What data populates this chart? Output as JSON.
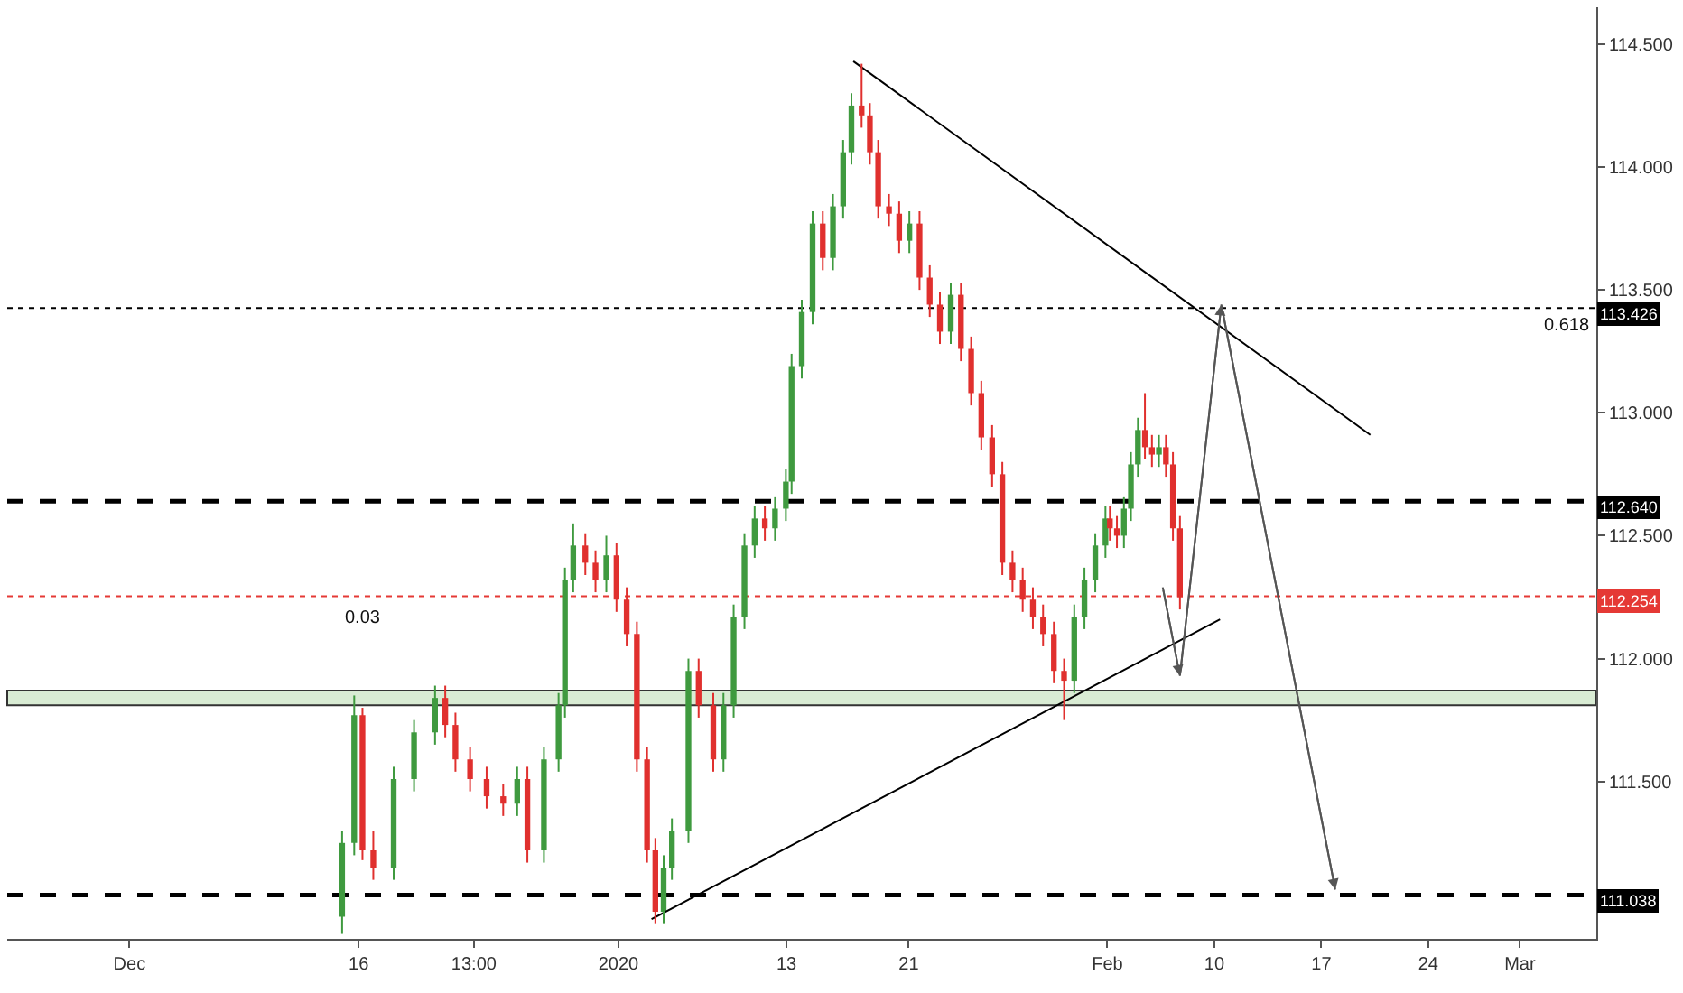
{
  "chart_data": {
    "type": "candlestick",
    "x": [
      "2019-12-14T22:00",
      "2019-12-15T17:00",
      "2019-12-16T06:00",
      "2019-12-16T23:00",
      "2019-12-18T07:00",
      "2019-12-19T15:00",
      "2019-12-21T00:00",
      "2019-12-21T16:00",
      "2019-12-22T08:00",
      "2019-12-23T07:00",
      "2019-12-24T09:00",
      "2019-12-25T11:00",
      "2019-12-26T09:00",
      "2019-12-27T01:00",
      "2019-12-28T03:00",
      "2019-12-29T02:00",
      "2019-12-29T12:00",
      "2019-12-30T01:00",
      "2019-12-30T20:00",
      "2019-12-31T12:00",
      "2020-01-01T05:00",
      "2020-01-01T21:00",
      "2020-01-02T13:00",
      "2020-01-03T05:00",
      "2020-01-03T21:00",
      "2020-01-04T10:00",
      "2020-01-04T23:00",
      "2020-01-05T12:00",
      "2020-01-06T14:00",
      "2020-01-07T06:00",
      "2020-01-08T05:00",
      "2020-01-08T21:00",
      "2020-01-09T13:00",
      "2020-01-10T06:00",
      "2020-01-10T22:00",
      "2020-01-11T14:00",
      "2020-01-12T06:00",
      "2020-01-12T23:00",
      "2020-01-13T08:00",
      "2020-01-14T00:00",
      "2020-01-14T17:00",
      "2020-01-15T09:00",
      "2020-01-16T01:00",
      "2020-01-16T17:00",
      "2020-01-17T06:00",
      "2020-01-17T22:00",
      "2020-01-18T11:00",
      "2020-01-19T00:00",
      "2020-01-19T17:00",
      "2020-01-20T09:00",
      "2020-01-21T01:00",
      "2020-01-21T17:00",
      "2020-01-22T09:00",
      "2020-01-23T01:00",
      "2020-01-23T18:00",
      "2020-01-24T10:00",
      "2020-01-25T02:00",
      "2020-01-25T18:00",
      "2020-01-26T11:00",
      "2020-01-27T03:00",
      "2020-01-27T19:00",
      "2020-01-28T11:00",
      "2020-01-29T03:00",
      "2020-01-29T19:00",
      "2020-01-30T12:00",
      "2020-01-31T04:00",
      "2020-01-31T20:00",
      "2020-02-01T12:00",
      "2020-02-02T05:00",
      "2020-02-02T21:00",
      "2020-02-03T04:00",
      "2020-02-03T15:00",
      "2020-02-04T02:00",
      "2020-02-04T13:00",
      "2020-02-05T00:00",
      "2020-02-05T11:00",
      "2020-02-05T22:00",
      "2020-02-06T09:00",
      "2020-02-06T20:00",
      "2020-02-07T07:00",
      "2020-02-07T18:00"
    ],
    "ohlc": [
      [
        110.95,
        111.3,
        110.88,
        111.25
      ],
      [
        111.25,
        111.85,
        111.2,
        111.77
      ],
      [
        111.77,
        111.8,
        111.18,
        111.22
      ],
      [
        111.22,
        111.3,
        111.1,
        111.15
      ],
      [
        111.15,
        111.56,
        111.1,
        111.51
      ],
      [
        111.51,
        111.75,
        111.46,
        111.7
      ],
      [
        111.7,
        111.89,
        111.65,
        111.84
      ],
      [
        111.84,
        111.89,
        111.68,
        111.73
      ],
      [
        111.73,
        111.78,
        111.54,
        111.59
      ],
      [
        111.59,
        111.64,
        111.46,
        111.51
      ],
      [
        111.51,
        111.56,
        111.39,
        111.44
      ],
      [
        111.44,
        111.49,
        111.36,
        111.41
      ],
      [
        111.41,
        111.56,
        111.36,
        111.51
      ],
      [
        111.51,
        111.56,
        111.17,
        111.22
      ],
      [
        111.22,
        111.64,
        111.17,
        111.59
      ],
      [
        111.59,
        111.86,
        111.54,
        111.81
      ],
      [
        111.81,
        112.37,
        111.76,
        112.32
      ],
      [
        112.32,
        112.55,
        112.27,
        112.46
      ],
      [
        112.46,
        112.51,
        112.34,
        112.39
      ],
      [
        112.39,
        112.44,
        112.27,
        112.32
      ],
      [
        112.32,
        112.5,
        112.27,
        112.42
      ],
      [
        112.42,
        112.47,
        112.19,
        112.24
      ],
      [
        112.24,
        112.29,
        112.05,
        112.1
      ],
      [
        112.1,
        112.15,
        111.54,
        111.59
      ],
      [
        111.59,
        111.64,
        111.17,
        111.22
      ],
      [
        111.22,
        111.27,
        110.92,
        110.97
      ],
      [
        110.97,
        111.2,
        110.92,
        111.15
      ],
      [
        111.15,
        111.35,
        111.1,
        111.3
      ],
      [
        111.3,
        112.0,
        111.25,
        111.95
      ],
      [
        111.95,
        112.0,
        111.76,
        111.81
      ],
      [
        111.81,
        111.86,
        111.54,
        111.59
      ],
      [
        111.59,
        111.86,
        111.54,
        111.81
      ],
      [
        111.81,
        112.22,
        111.76,
        112.17
      ],
      [
        112.17,
        112.51,
        112.12,
        112.46
      ],
      [
        112.46,
        112.62,
        112.41,
        112.57
      ],
      [
        112.57,
        112.62,
        112.48,
        112.53
      ],
      [
        112.53,
        112.66,
        112.48,
        112.61
      ],
      [
        112.61,
        112.77,
        112.56,
        112.72
      ],
      [
        112.72,
        113.24,
        112.67,
        113.19
      ],
      [
        113.19,
        113.46,
        113.14,
        113.41
      ],
      [
        113.41,
        113.82,
        113.36,
        113.77
      ],
      [
        113.77,
        113.82,
        113.58,
        113.63
      ],
      [
        113.63,
        113.89,
        113.58,
        113.84
      ],
      [
        113.84,
        114.11,
        113.79,
        114.06
      ],
      [
        114.06,
        114.3,
        114.01,
        114.25
      ],
      [
        114.25,
        114.42,
        114.16,
        114.21
      ],
      [
        114.21,
        114.26,
        114.01,
        114.06
      ],
      [
        114.06,
        114.11,
        113.79,
        113.84
      ],
      [
        113.84,
        113.89,
        113.76,
        113.81
      ],
      [
        113.81,
        113.86,
        113.65,
        113.7
      ],
      [
        113.7,
        113.82,
        113.65,
        113.77
      ],
      [
        113.77,
        113.82,
        113.5,
        113.55
      ],
      [
        113.55,
        113.6,
        113.39,
        113.44
      ],
      [
        113.44,
        113.49,
        113.28,
        113.33
      ],
      [
        113.33,
        113.53,
        113.28,
        113.48
      ],
      [
        113.48,
        113.53,
        113.21,
        113.26
      ],
      [
        113.26,
        113.31,
        113.03,
        113.08
      ],
      [
        113.08,
        113.13,
        112.85,
        112.9
      ],
      [
        112.9,
        112.95,
        112.7,
        112.75
      ],
      [
        112.75,
        112.8,
        112.34,
        112.39
      ],
      [
        112.39,
        112.44,
        112.27,
        112.32
      ],
      [
        112.32,
        112.37,
        112.19,
        112.24
      ],
      [
        112.24,
        112.29,
        112.12,
        112.17
      ],
      [
        112.17,
        112.22,
        112.05,
        112.1
      ],
      [
        112.1,
        112.15,
        111.9,
        111.95
      ],
      [
        111.95,
        112.0,
        111.75,
        111.91
      ],
      [
        111.91,
        112.22,
        111.86,
        112.17
      ],
      [
        112.17,
        112.37,
        112.12,
        112.32
      ],
      [
        112.32,
        112.51,
        112.27,
        112.46
      ],
      [
        112.46,
        112.62,
        112.41,
        112.57
      ],
      [
        112.57,
        112.62,
        112.48,
        112.53
      ],
      [
        112.53,
        112.58,
        112.45,
        112.5
      ],
      [
        112.5,
        112.66,
        112.45,
        112.61
      ],
      [
        112.61,
        112.84,
        112.56,
        112.79
      ],
      [
        112.79,
        112.98,
        112.74,
        112.93
      ],
      [
        112.93,
        113.08,
        112.81,
        112.86
      ],
      [
        112.86,
        112.91,
        112.78,
        112.83
      ],
      [
        112.83,
        112.91,
        112.78,
        112.86
      ],
      [
        112.86,
        112.91,
        112.74,
        112.79
      ],
      [
        112.79,
        112.84,
        112.48,
        112.53
      ],
      [
        112.53,
        112.58,
        112.2,
        112.25
      ]
    ],
    "series": [
      {
        "type": "line",
        "color": "#000000",
        "x": [
          "2020-01-17T09:00",
          "2020-02-20T05:00"
        ],
        "values": [
          114.43,
          112.91
        ]
      },
      {
        "type": "line",
        "color": "#000000",
        "x": [
          "2020-01-04T04:00",
          "2020-02-10T09:00"
        ],
        "values": [
          110.94,
          112.16
        ]
      },
      {
        "type": "line",
        "color": "#555555",
        "x": [
          "2020-02-06T15:00",
          "2020-02-07T18:00",
          "2020-02-10T11:00",
          "2020-02-17T22:00"
        ],
        "values": [
          112.29,
          111.93,
          113.44,
          111.06
        ]
      }
    ],
    "bands": [
      {
        "axis": "y",
        "from": 111.81,
        "to": 111.87,
        "color": "#d9ecd4"
      }
    ],
    "ref_lines": [
      {
        "axis": "y",
        "value": 113.426,
        "label": "113.426",
        "color": "#000000",
        "line_style": "dotted"
      },
      {
        "axis": "y",
        "value": 112.64,
        "label": "112.640",
        "color": "#000000",
        "line_style": "dashed"
      },
      {
        "axis": "y",
        "value": 112.254,
        "label": "112.254",
        "color": "#e53935",
        "line_style": "dotted"
      },
      {
        "axis": "y",
        "value": 111.038,
        "label": "111.038",
        "color": "#000000",
        "line_style": "dashed"
      }
    ],
    "annotations": [
      {
        "text": "0.618",
        "x": "2020-03-04",
        "y": 113.426
      },
      "0.03"
    ],
    "xlim": [
      "2019-11-23",
      "2020-03-06"
    ],
    "xticks": [
      {
        "value": "2019-12-01",
        "label": "Dec"
      },
      {
        "value": "2019-12-16",
        "label": "16"
      },
      {
        "value": "2019-12-23T13:00",
        "label": "13:00"
      },
      {
        "value": "2020-01-02",
        "label": "2020"
      },
      {
        "value": "2020-01-13",
        "label": "13"
      },
      {
        "value": "2020-01-21",
        "label": "21"
      },
      {
        "value": "2020-02-03",
        "label": "Feb"
      },
      {
        "value": "2020-02-10",
        "label": "10"
      },
      {
        "value": "2020-02-17",
        "label": "17"
      },
      {
        "value": "2020-02-24",
        "label": "24"
      },
      {
        "value": "2020-03-01",
        "label": "Mar"
      }
    ],
    "ylim": [
      110.86,
      114.65
    ],
    "yticks": [
      {
        "value": 111.5,
        "label": "111.500"
      },
      {
        "value": 112,
        "label": "112.000"
      },
      {
        "value": 112.5,
        "label": "112.500"
      },
      {
        "value": 113,
        "label": "113.000"
      },
      {
        "value": 113.5,
        "label": "113.500"
      },
      {
        "value": 114,
        "label": "114.000"
      },
      {
        "value": 114.5,
        "label": "114.500"
      }
    ],
    "grid": false
  }
}
